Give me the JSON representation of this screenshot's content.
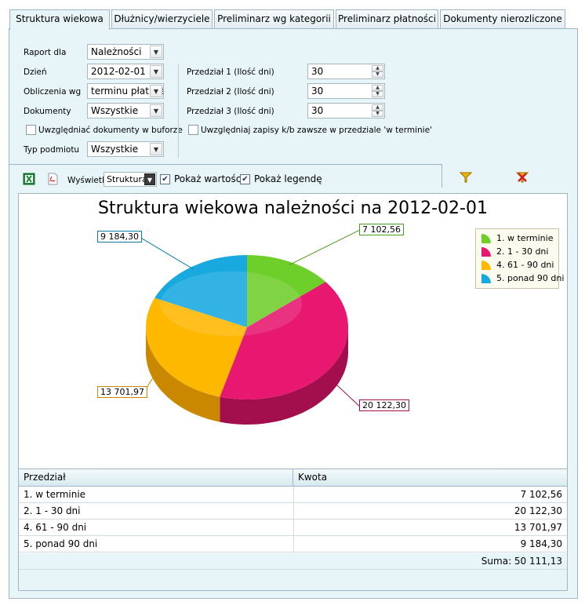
{
  "tabs": [
    {
      "label": "Struktura wiekowa",
      "active": true
    },
    {
      "label": "Dłużnicy/wierzyciele",
      "active": false
    },
    {
      "label": "Preliminarz wg kategorii",
      "active": false
    },
    {
      "label": "Preliminarz płatności",
      "active": false
    },
    {
      "label": "Dokumenty nierozliczone",
      "active": false
    }
  ],
  "form": {
    "raport_dla_label": "Raport dla",
    "raport_dla_value": "Należności",
    "dzien_label": "Dzień",
    "dzien_value": "2012-02-01",
    "obliczenia_label": "Obliczenia wg",
    "obliczenia_value": "terminu płatności",
    "dokumenty_label": "Dokumenty",
    "dokumenty_value": "Wszystkie",
    "buforze_label": "Uwzględniać dokumenty w buforze",
    "typ_podmiotu_label": "Typ podmiotu",
    "typ_podmiotu_value": "Wszystkie",
    "przedzial1_label": "Przedział 1 (Ilość dni)",
    "przedzial1_value": "30",
    "przedzial2_label": "Przedział 2 (Ilość dni)",
    "przedzial2_value": "30",
    "przedzial3_label": "Przedział 3 (Ilość dni)",
    "przedzial3_value": "30",
    "zapisy_label": "Uwzględniaj zapisy k/b zawsze w przedziale 'w terminie'"
  },
  "toolbar": {
    "excel_icon": "excel-icon",
    "pdf_icon": "pdf-icon",
    "wyswietl_label": "Wyświetl",
    "wyswietl_value": "Struktura",
    "pokaz_wartosci_label": "Pokaż wartości",
    "pokaz_wartosci_checked": true,
    "pokaz_legende_label": "Pokaż legendę",
    "pokaz_legende_checked": true,
    "filter_icon": "filter-icon",
    "clear_filter_icon": "clear-filter-icon"
  },
  "chart_data": {
    "type": "pie",
    "title": "Struktura wiekowa należności na 2012-02-01",
    "categories": [
      "1. w terminie",
      "2.  1 - 30 dni",
      "4.  61 - 90 dni",
      "5.  ponad 90 dni"
    ],
    "values": [
      7102.56,
      20122.3,
      13701.97,
      9184.3
    ],
    "value_labels": [
      "7 102,56",
      "20 122,30",
      "13 701,97",
      "9 184,30"
    ],
    "colors": [
      "#6fcf2a",
      "#e8176f",
      "#ffb800",
      "#17a9e0"
    ],
    "legend": "top-right"
  },
  "table": {
    "headers": [
      "Przedział",
      "Kwota"
    ],
    "rows": [
      [
        "1. w terminie",
        "7 102,56"
      ],
      [
        "2. 1 - 30 dni",
        "20 122,30"
      ],
      [
        "4. 61 - 90 dni",
        "13 701,97"
      ],
      [
        "5. ponad 90 dni",
        "9 184,30"
      ]
    ],
    "sum_label": "Suma: 50 111,13"
  }
}
